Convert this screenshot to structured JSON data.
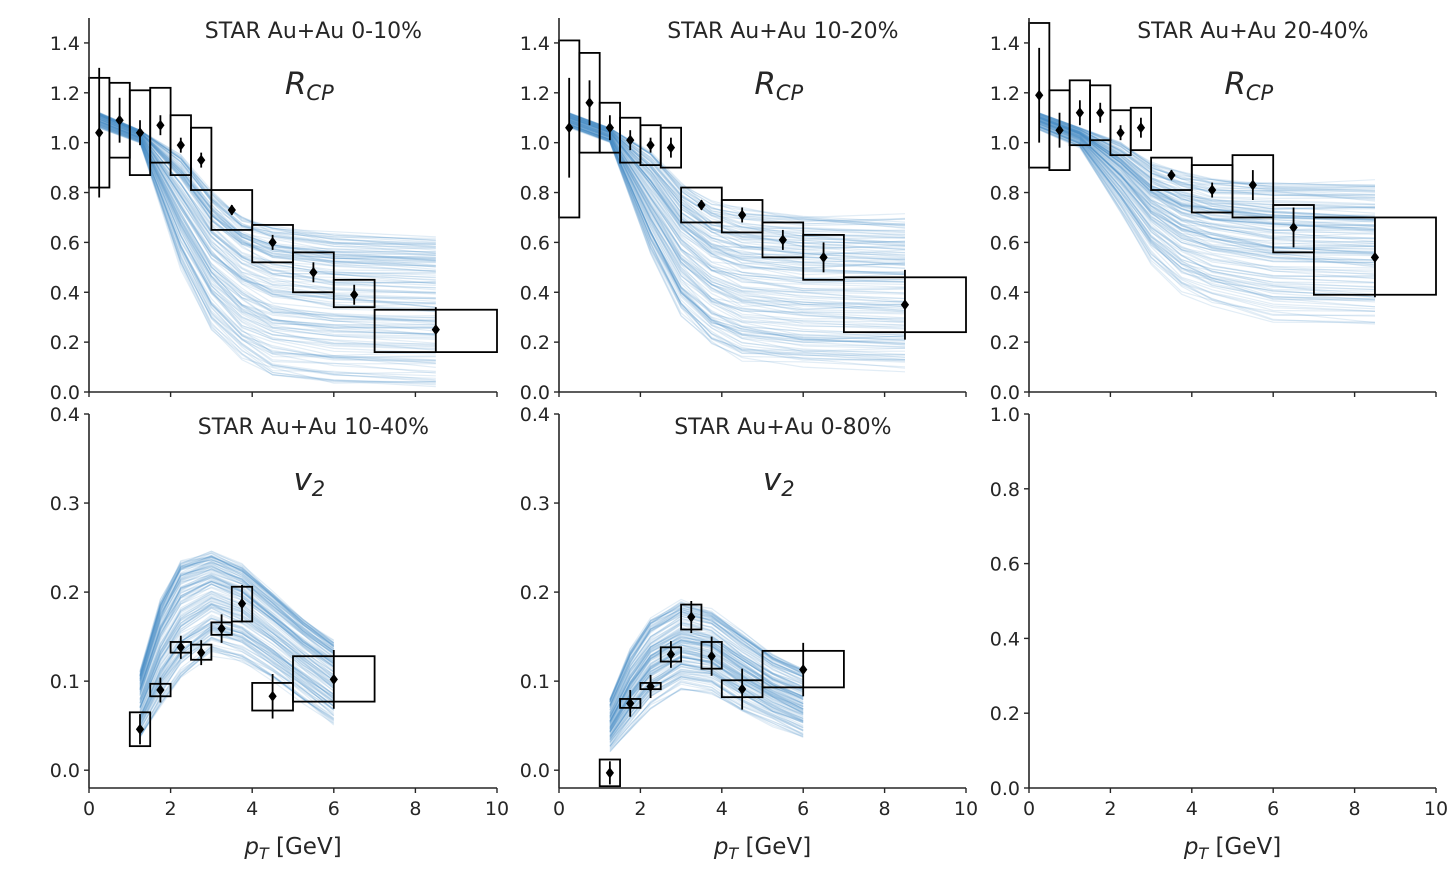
{
  "chart_data": [
    {
      "type": "line",
      "title": "STAR Au+Au 0-10%",
      "observable": {
        "main": "R",
        "sub": "CP"
      },
      "xlabel": "",
      "xlim": [
        0,
        10
      ],
      "ylim": [
        0,
        1.5
      ],
      "yticks": [
        "0.0",
        "0.2",
        "0.4",
        "0.6",
        "0.8",
        "1.0",
        "1.2",
        "1.4"
      ],
      "ytick_values": [
        0,
        0.2,
        0.4,
        0.6,
        0.8,
        1.0,
        1.2,
        1.4
      ],
      "xticks": [],
      "xtick_values": [
        0,
        2,
        4,
        6,
        8,
        10
      ],
      "model": {
        "x": [
          0.25,
          1.25,
          2.25,
          3.0,
          3.75,
          4.5,
          6.0,
          8.5
        ],
        "anchors_low": [
          1.06,
          1.0,
          0.5,
          0.25,
          0.13,
          0.06,
          0.03,
          0.02
        ],
        "anchors_high": [
          1.12,
          1.05,
          0.95,
          0.8,
          0.7,
          0.66,
          0.63,
          0.61
        ],
        "count": 150
      },
      "data": [
        {
          "x": 0.25,
          "y": 1.04,
          "err": 0.26,
          "box_x": [
            0,
            0.5
          ],
          "box_y": [
            0.82,
            1.26
          ]
        },
        {
          "x": 0.75,
          "y": 1.09,
          "err": 0.09,
          "box_x": [
            0.5,
            1.0
          ],
          "box_y": [
            0.94,
            1.24
          ]
        },
        {
          "x": 1.25,
          "y": 1.04,
          "err": 0.05,
          "box_x": [
            1.0,
            1.5
          ],
          "box_y": [
            0.87,
            1.21
          ]
        },
        {
          "x": 1.75,
          "y": 1.07,
          "err": 0.04,
          "box_x": [
            1.5,
            2.0
          ],
          "box_y": [
            0.92,
            1.22
          ]
        },
        {
          "x": 2.25,
          "y": 0.99,
          "err": 0.03,
          "box_x": [
            2.0,
            2.5
          ],
          "box_y": [
            0.87,
            1.11
          ]
        },
        {
          "x": 2.75,
          "y": 0.93,
          "err": 0.03,
          "box_x": [
            2.5,
            3.0
          ],
          "box_y": [
            0.81,
            1.06
          ]
        },
        {
          "x": 3.5,
          "y": 0.73,
          "err": 0.02,
          "box_x": [
            3.0,
            4.0
          ],
          "box_y": [
            0.65,
            0.81
          ]
        },
        {
          "x": 4.5,
          "y": 0.6,
          "err": 0.03,
          "box_x": [
            4.0,
            5.0
          ],
          "box_y": [
            0.52,
            0.67
          ]
        },
        {
          "x": 5.5,
          "y": 0.48,
          "err": 0.04,
          "box_x": [
            5.0,
            6.0
          ],
          "box_y": [
            0.4,
            0.56
          ]
        },
        {
          "x": 6.5,
          "y": 0.39,
          "err": 0.04,
          "box_x": [
            6.0,
            7.0
          ],
          "box_y": [
            0.34,
            0.45
          ]
        },
        {
          "x": 8.5,
          "y": 0.25,
          "err": 0.09,
          "box_x": [
            7.0,
            10.0
          ],
          "box_y": [
            0.16,
            0.33
          ]
        }
      ]
    },
    {
      "type": "line",
      "title": "STAR Au+Au 10-20%",
      "observable": {
        "main": "R",
        "sub": "CP"
      },
      "xlabel": "",
      "xlim": [
        0,
        10
      ],
      "ylim": [
        0,
        1.5
      ],
      "yticks": [
        "0.0",
        "0.2",
        "0.4",
        "0.6",
        "0.8",
        "1.0",
        "1.2",
        "1.4"
      ],
      "ytick_values": [
        0,
        0.2,
        0.4,
        0.6,
        0.8,
        1.0,
        1.2,
        1.4
      ],
      "xticks": [],
      "xtick_values": [
        0,
        2,
        4,
        6,
        8,
        10
      ],
      "model": {
        "x": [
          0.25,
          1.25,
          2.25,
          3.0,
          3.75,
          4.5,
          6.0,
          8.5
        ],
        "anchors_low": [
          1.06,
          1.0,
          0.55,
          0.3,
          0.18,
          0.12,
          0.09,
          0.08
        ],
        "anchors_high": [
          1.12,
          1.06,
          0.97,
          0.84,
          0.76,
          0.73,
          0.71,
          0.7
        ],
        "count": 150
      },
      "data": [
        {
          "x": 0.25,
          "y": 1.06,
          "err": 0.2,
          "box_x": [
            0,
            0.5
          ],
          "box_y": [
            0.7,
            1.41
          ]
        },
        {
          "x": 0.75,
          "y": 1.16,
          "err": 0.09,
          "box_x": [
            0.5,
            1.0
          ],
          "box_y": [
            0.96,
            1.36
          ]
        },
        {
          "x": 1.25,
          "y": 1.06,
          "err": 0.05,
          "box_x": [
            1.0,
            1.5
          ],
          "box_y": [
            0.96,
            1.16
          ]
        },
        {
          "x": 1.75,
          "y": 1.01,
          "err": 0.04,
          "box_x": [
            1.5,
            2.0
          ],
          "box_y": [
            0.92,
            1.1
          ]
        },
        {
          "x": 2.25,
          "y": 0.99,
          "err": 0.03,
          "box_x": [
            2.0,
            2.5
          ],
          "box_y": [
            0.91,
            1.07
          ]
        },
        {
          "x": 2.75,
          "y": 0.98,
          "err": 0.04,
          "box_x": [
            2.5,
            3.0
          ],
          "box_y": [
            0.9,
            1.06
          ]
        },
        {
          "x": 3.5,
          "y": 0.75,
          "err": 0.02,
          "box_x": [
            3.0,
            4.0
          ],
          "box_y": [
            0.68,
            0.82
          ]
        },
        {
          "x": 4.5,
          "y": 0.71,
          "err": 0.03,
          "box_x": [
            4.0,
            5.0
          ],
          "box_y": [
            0.64,
            0.77
          ]
        },
        {
          "x": 5.5,
          "y": 0.61,
          "err": 0.04,
          "box_x": [
            5.0,
            6.0
          ],
          "box_y": [
            0.54,
            0.68
          ]
        },
        {
          "x": 6.5,
          "y": 0.54,
          "err": 0.06,
          "box_x": [
            6.0,
            7.0
          ],
          "box_y": [
            0.45,
            0.63
          ]
        },
        {
          "x": 8.5,
          "y": 0.35,
          "err": 0.14,
          "box_x": [
            7.0,
            10.0
          ],
          "box_y": [
            0.24,
            0.46
          ]
        }
      ]
    },
    {
      "type": "line",
      "title": "STAR Au+Au 20-40%",
      "observable": {
        "main": "R",
        "sub": "CP"
      },
      "xlabel": "",
      "xlim": [
        0,
        10
      ],
      "ylim": [
        0,
        1.5
      ],
      "yticks": [
        "0.0",
        "0.2",
        "0.4",
        "0.6",
        "0.8",
        "1.0",
        "1.2",
        "1.4"
      ],
      "ytick_values": [
        0,
        0.2,
        0.4,
        0.6,
        0.8,
        1.0,
        1.2,
        1.4
      ],
      "xticks": [],
      "xtick_values": [
        0,
        2,
        4,
        6,
        8,
        10
      ],
      "model": {
        "x": [
          0.25,
          1.25,
          2.25,
          3.0,
          3.75,
          4.5,
          6.0,
          8.5
        ],
        "anchors_low": [
          1.05,
          0.98,
          0.72,
          0.52,
          0.4,
          0.34,
          0.28,
          0.26
        ],
        "anchors_high": [
          1.12,
          1.06,
          1.0,
          0.92,
          0.88,
          0.86,
          0.85,
          0.84
        ],
        "count": 150
      },
      "data": [
        {
          "x": 0.25,
          "y": 1.19,
          "err": 0.19,
          "box_x": [
            0,
            0.5
          ],
          "box_y": [
            0.9,
            1.48
          ]
        },
        {
          "x": 0.75,
          "y": 1.05,
          "err": 0.07,
          "box_x": [
            0.5,
            1.0
          ],
          "box_y": [
            0.89,
            1.21
          ]
        },
        {
          "x": 1.25,
          "y": 1.12,
          "err": 0.05,
          "box_x": [
            1.0,
            1.5
          ],
          "box_y": [
            0.99,
            1.25
          ]
        },
        {
          "x": 1.75,
          "y": 1.12,
          "err": 0.04,
          "box_x": [
            1.5,
            2.0
          ],
          "box_y": [
            1.01,
            1.23
          ]
        },
        {
          "x": 2.25,
          "y": 1.04,
          "err": 0.03,
          "box_x": [
            2.0,
            2.5
          ],
          "box_y": [
            0.95,
            1.13
          ]
        },
        {
          "x": 2.75,
          "y": 1.06,
          "err": 0.04,
          "box_x": [
            2.5,
            3.0
          ],
          "box_y": [
            0.97,
            1.14
          ]
        },
        {
          "x": 3.5,
          "y": 0.87,
          "err": 0.02,
          "box_x": [
            3.0,
            4.0
          ],
          "box_y": [
            0.81,
            0.94
          ]
        },
        {
          "x": 4.5,
          "y": 0.81,
          "err": 0.03,
          "box_x": [
            4.0,
            5.0
          ],
          "box_y": [
            0.72,
            0.91
          ]
        },
        {
          "x": 5.5,
          "y": 0.83,
          "err": 0.06,
          "box_x": [
            5.0,
            6.0
          ],
          "box_y": [
            0.7,
            0.95
          ]
        },
        {
          "x": 6.5,
          "y": 0.66,
          "err": 0.08,
          "box_x": [
            6.0,
            7.0
          ],
          "box_y": [
            0.56,
            0.75
          ]
        },
        {
          "x": 8.5,
          "y": 0.54,
          "err": 0.16,
          "box_x": [
            7.0,
            10.0
          ],
          "box_y": [
            0.39,
            0.7
          ]
        }
      ]
    },
    {
      "type": "line",
      "title": "STAR Au+Au 10-40%",
      "observable": {
        "main": "v",
        "sub": "2"
      },
      "xlabel": "p_T [GeV]",
      "xlim": [
        0,
        10
      ],
      "ylim": [
        -0.02,
        0.4
      ],
      "yticks": [
        "0.0",
        "0.1",
        "0.2",
        "0.3",
        "0.4"
      ],
      "ytick_values": [
        0,
        0.1,
        0.2,
        0.3,
        0.4
      ],
      "xticks": [
        "0",
        "2",
        "4",
        "6",
        "8",
        "10"
      ],
      "xtick_values": [
        0,
        2,
        4,
        6,
        8,
        10
      ],
      "model": {
        "x": [
          1.25,
          1.75,
          2.25,
          3.0,
          3.75,
          4.5,
          5.25,
          6.0
        ],
        "anchors_low": [
          0.035,
          0.07,
          0.1,
          0.13,
          0.12,
          0.1,
          0.075,
          0.05
        ],
        "anchors_high": [
          0.11,
          0.19,
          0.235,
          0.245,
          0.23,
          0.2,
          0.17,
          0.145
        ],
        "count": 150
      },
      "data": [
        {
          "x": 1.25,
          "y": 0.046,
          "err": 0.017,
          "box_x": [
            1.0,
            1.5
          ],
          "box_y": [
            0.027,
            0.065
          ]
        },
        {
          "x": 1.75,
          "y": 0.09,
          "err": 0.014,
          "box_x": [
            1.5,
            2.0
          ],
          "box_y": [
            0.083,
            0.097
          ]
        },
        {
          "x": 2.25,
          "y": 0.138,
          "err": 0.013,
          "box_x": [
            2.0,
            2.5
          ],
          "box_y": [
            0.132,
            0.144
          ]
        },
        {
          "x": 2.75,
          "y": 0.132,
          "err": 0.014,
          "box_x": [
            2.5,
            3.0
          ],
          "box_y": [
            0.124,
            0.141
          ]
        },
        {
          "x": 3.25,
          "y": 0.159,
          "err": 0.016,
          "box_x": [
            3.0,
            3.5
          ],
          "box_y": [
            0.152,
            0.166
          ]
        },
        {
          "x": 3.75,
          "y": 0.187,
          "err": 0.021,
          "box_x": [
            3.5,
            4.0
          ],
          "box_y": [
            0.167,
            0.206
          ]
        },
        {
          "x": 4.5,
          "y": 0.083,
          "err": 0.025,
          "box_x": [
            4.0,
            5.0
          ],
          "box_y": [
            0.067,
            0.098
          ]
        },
        {
          "x": 6.0,
          "y": 0.102,
          "err": 0.033,
          "box_x": [
            5.0,
            7.0
          ],
          "box_y": [
            0.077,
            0.128
          ]
        }
      ]
    },
    {
      "type": "line",
      "title": "STAR Au+Au 0-80%",
      "observable": {
        "main": "v",
        "sub": "2"
      },
      "xlabel": "p_T [GeV]",
      "xlim": [
        0,
        10
      ],
      "ylim": [
        -0.02,
        0.4
      ],
      "yticks": [
        "0.0",
        "0.1",
        "0.2",
        "0.3",
        "0.4"
      ],
      "ytick_values": [
        0,
        0.1,
        0.2,
        0.3,
        0.4
      ],
      "xticks": [
        "0",
        "2",
        "4",
        "6",
        "8",
        "10"
      ],
      "xtick_values": [
        0,
        2,
        4,
        6,
        8,
        10
      ],
      "model": {
        "x": [
          1.25,
          1.75,
          2.25,
          3.0,
          3.75,
          4.5,
          5.25,
          6.0
        ],
        "anchors_low": [
          0.02,
          0.045,
          0.07,
          0.09,
          0.085,
          0.065,
          0.05,
          0.035
        ],
        "anchors_high": [
          0.08,
          0.135,
          0.17,
          0.19,
          0.18,
          0.155,
          0.13,
          0.115
        ],
        "count": 150
      },
      "data": [
        {
          "x": 1.25,
          "y": -0.003,
          "err": 0.013,
          "box_x": [
            1.0,
            1.5
          ],
          "box_y": [
            -0.018,
            0.012
          ]
        },
        {
          "x": 1.75,
          "y": 0.075,
          "err": 0.015,
          "box_x": [
            1.5,
            2.0
          ],
          "box_y": [
            0.07,
            0.08
          ]
        },
        {
          "x": 2.25,
          "y": 0.094,
          "err": 0.013,
          "box_x": [
            2.0,
            2.5
          ],
          "box_y": [
            0.091,
            0.098
          ]
        },
        {
          "x": 2.75,
          "y": 0.13,
          "err": 0.015,
          "box_x": [
            2.5,
            3.0
          ],
          "box_y": [
            0.122,
            0.138
          ]
        },
        {
          "x": 3.25,
          "y": 0.172,
          "err": 0.018,
          "box_x": [
            3.0,
            3.5
          ],
          "box_y": [
            0.158,
            0.186
          ]
        },
        {
          "x": 3.75,
          "y": 0.128,
          "err": 0.022,
          "box_x": [
            3.5,
            4.0
          ],
          "box_y": [
            0.114,
            0.144
          ]
        },
        {
          "x": 4.5,
          "y": 0.091,
          "err": 0.023,
          "box_x": [
            4.0,
            5.0
          ],
          "box_y": [
            0.082,
            0.101
          ]
        },
        {
          "x": 6.0,
          "y": 0.113,
          "err": 0.03,
          "box_x": [
            5.0,
            7.0
          ],
          "box_y": [
            0.093,
            0.134
          ]
        }
      ]
    },
    {
      "type": "line",
      "title": "",
      "xlabel": "p_T [GeV]",
      "xlim": [
        0,
        10
      ],
      "ylim": [
        0,
        1.0
      ],
      "yticks": [
        "0.0",
        "0.2",
        "0.4",
        "0.6",
        "0.8",
        "1.0"
      ],
      "ytick_values": [
        0,
        0.2,
        0.4,
        0.6,
        0.8,
        1.0
      ],
      "xticks": [
        "0",
        "2",
        "4",
        "6",
        "8",
        "10"
      ],
      "xtick_values": [
        0,
        2,
        4,
        6,
        8,
        10
      ],
      "data": []
    }
  ],
  "style": {
    "model_color": "#4a90c4",
    "marker_color": "#000000",
    "axis_color": "#262626"
  }
}
